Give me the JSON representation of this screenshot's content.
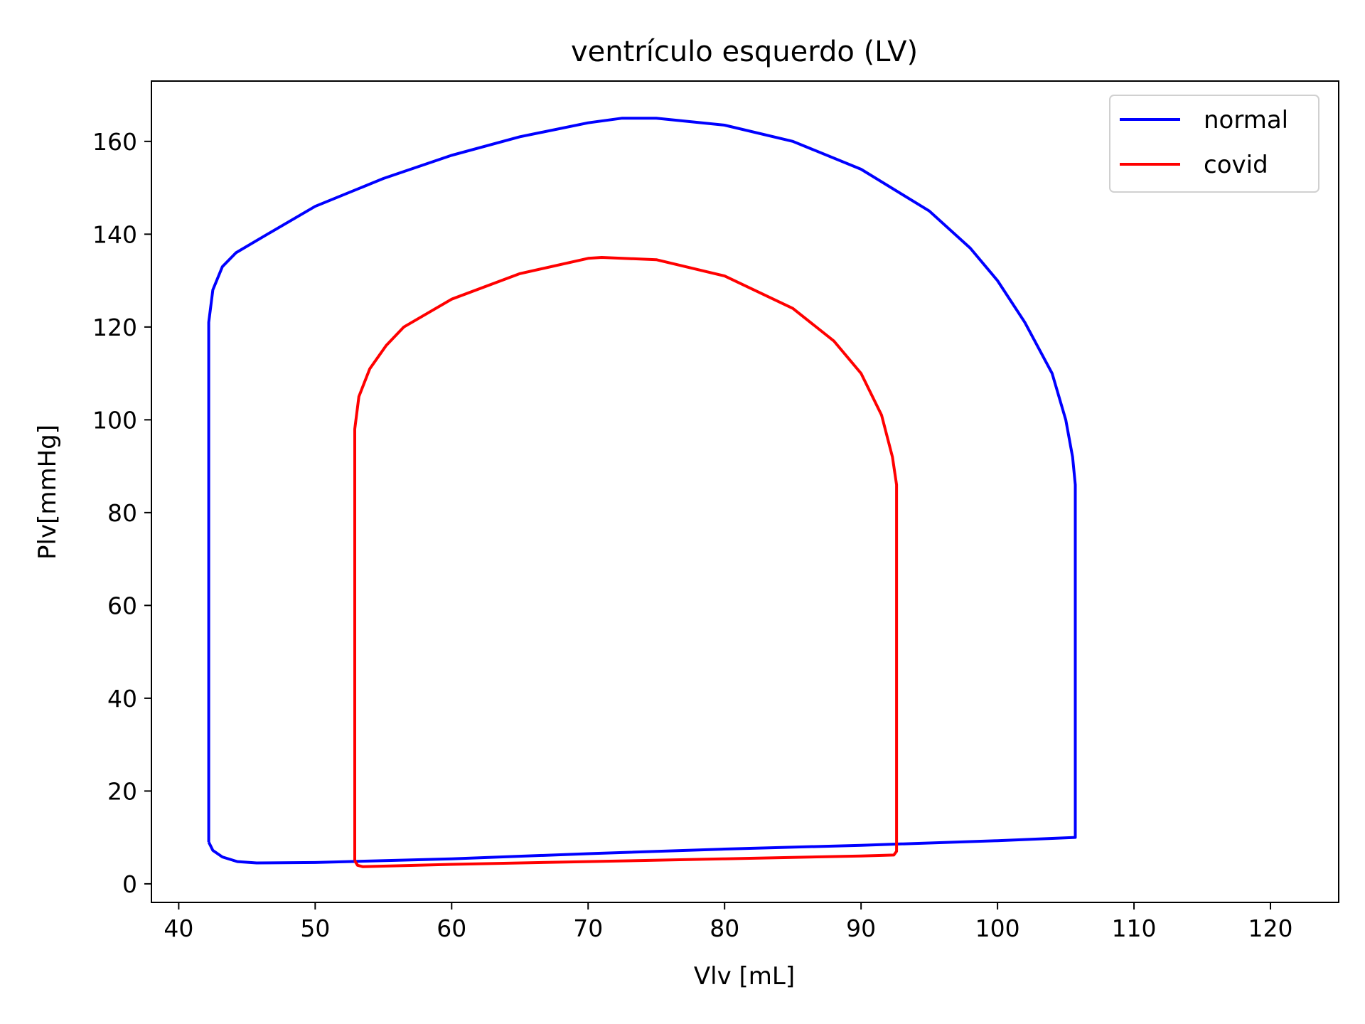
{
  "chart_data": {
    "type": "line",
    "title": "ventrículo esquerdo (LV)",
    "xlabel": "Vlv [mL]",
    "ylabel": "Plv[mmHg]",
    "xlim": [
      38,
      125
    ],
    "ylim": [
      -4,
      173
    ],
    "xticks": [
      40,
      50,
      60,
      70,
      80,
      90,
      100,
      110,
      120
    ],
    "yticks": [
      0,
      20,
      40,
      60,
      80,
      100,
      120,
      140,
      160
    ],
    "xtick_labels": [
      "40",
      "50",
      "60",
      "70",
      "80",
      "90",
      "100",
      "110",
      "120"
    ],
    "ytick_labels": [
      "0",
      "20",
      "40",
      "60",
      "80",
      "100",
      "120",
      "140",
      "160"
    ],
    "grid": false,
    "legend": {
      "position": "top-right",
      "entries": [
        "normal",
        "covid"
      ]
    },
    "series": [
      {
        "name": "normal",
        "color": "#0000ff",
        "x": [
          42.2,
          42.2,
          42.2,
          42.5,
          43.2,
          44.2,
          46.5,
          50,
          55,
          60,
          65,
          70,
          72.5,
          75,
          80,
          85,
          90,
          95,
          98,
          100,
          102,
          104,
          105,
          105.5,
          105.7,
          105.7,
          105.7,
          100,
          90,
          80,
          70,
          60,
          50,
          45.7,
          44.3,
          43.2,
          42.5,
          42.2
        ],
        "y": [
          9,
          80,
          121,
          128,
          133,
          136,
          140,
          146,
          152,
          157,
          161,
          164,
          165,
          165,
          163.5,
          160,
          154,
          145,
          137,
          130,
          121,
          110,
          100,
          92,
          86,
          50,
          10,
          9.3,
          8.3,
          7.5,
          6.5,
          5.4,
          4.6,
          4.5,
          4.8,
          5.8,
          7.2,
          9
        ]
      },
      {
        "name": "covid",
        "color": "#ff0000",
        "x": [
          52.9,
          52.9,
          52.9,
          53.2,
          54,
          55.2,
          56.5,
          60,
          65,
          70,
          71,
          75,
          80,
          85,
          88,
          90,
          91.5,
          92.3,
          92.6,
          92.6,
          92.6,
          92.4,
          90,
          80,
          70,
          60,
          53.5,
          53.1,
          52.9
        ],
        "y": [
          5,
          60,
          98,
          105,
          111,
          116,
          120,
          126,
          131.5,
          134.8,
          135,
          134.5,
          131,
          124,
          117,
          110,
          101,
          92,
          86,
          76,
          7,
          6.2,
          6,
          5.4,
          4.8,
          4.2,
          3.7,
          4,
          5
        ]
      }
    ]
  }
}
